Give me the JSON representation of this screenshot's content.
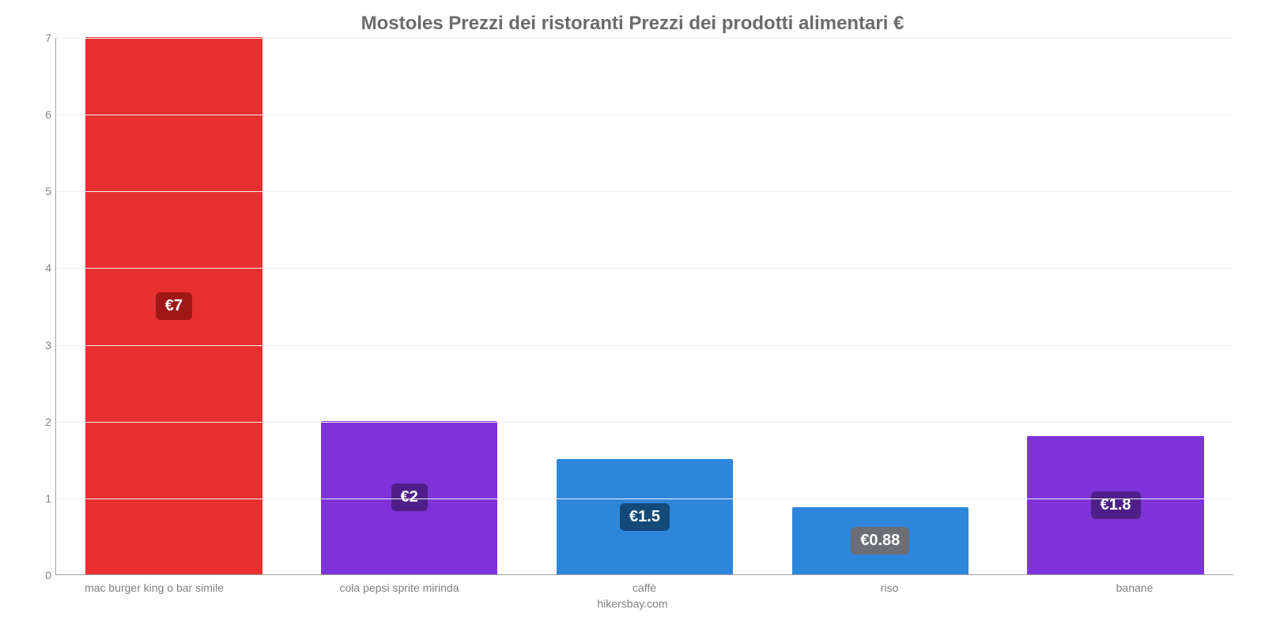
{
  "chart": {
    "type": "bar",
    "title": "Mostoles Prezzi dei ristoranti Prezzi dei prodotti alimentari €",
    "title_color": "#6b6b6b",
    "title_fontsize": 24,
    "background_color": "#ffffff",
    "grid_color": "#f0f0f0",
    "axis_color": "#a0a0a0",
    "label_color": "#808080",
    "label_fontsize": 14,
    "value_fontsize": 20,
    "ylim": [
      0,
      7
    ],
    "yticks": [
      0,
      1,
      2,
      3,
      4,
      5,
      6,
      7
    ],
    "bar_width": 0.75,
    "categories": [
      "mac burger king o bar simile",
      "cola pepsi sprite mirinda",
      "caffè",
      "riso",
      "banane"
    ],
    "values": [
      7,
      2,
      1.5,
      0.88,
      1.8
    ],
    "value_labels": [
      "€7",
      "€2",
      "€1.5",
      "€0.88",
      "€1.8"
    ],
    "bar_colors": [
      "#e7302f",
      "#7d33d8",
      "#2e86db",
      "#2e86db",
      "#7d33d8"
    ],
    "badge_colors": [
      "#a01717",
      "#4e1f88",
      "#134a78",
      "#6b6e72",
      "#4e1f88"
    ],
    "attribution": "hikersbay.com"
  }
}
